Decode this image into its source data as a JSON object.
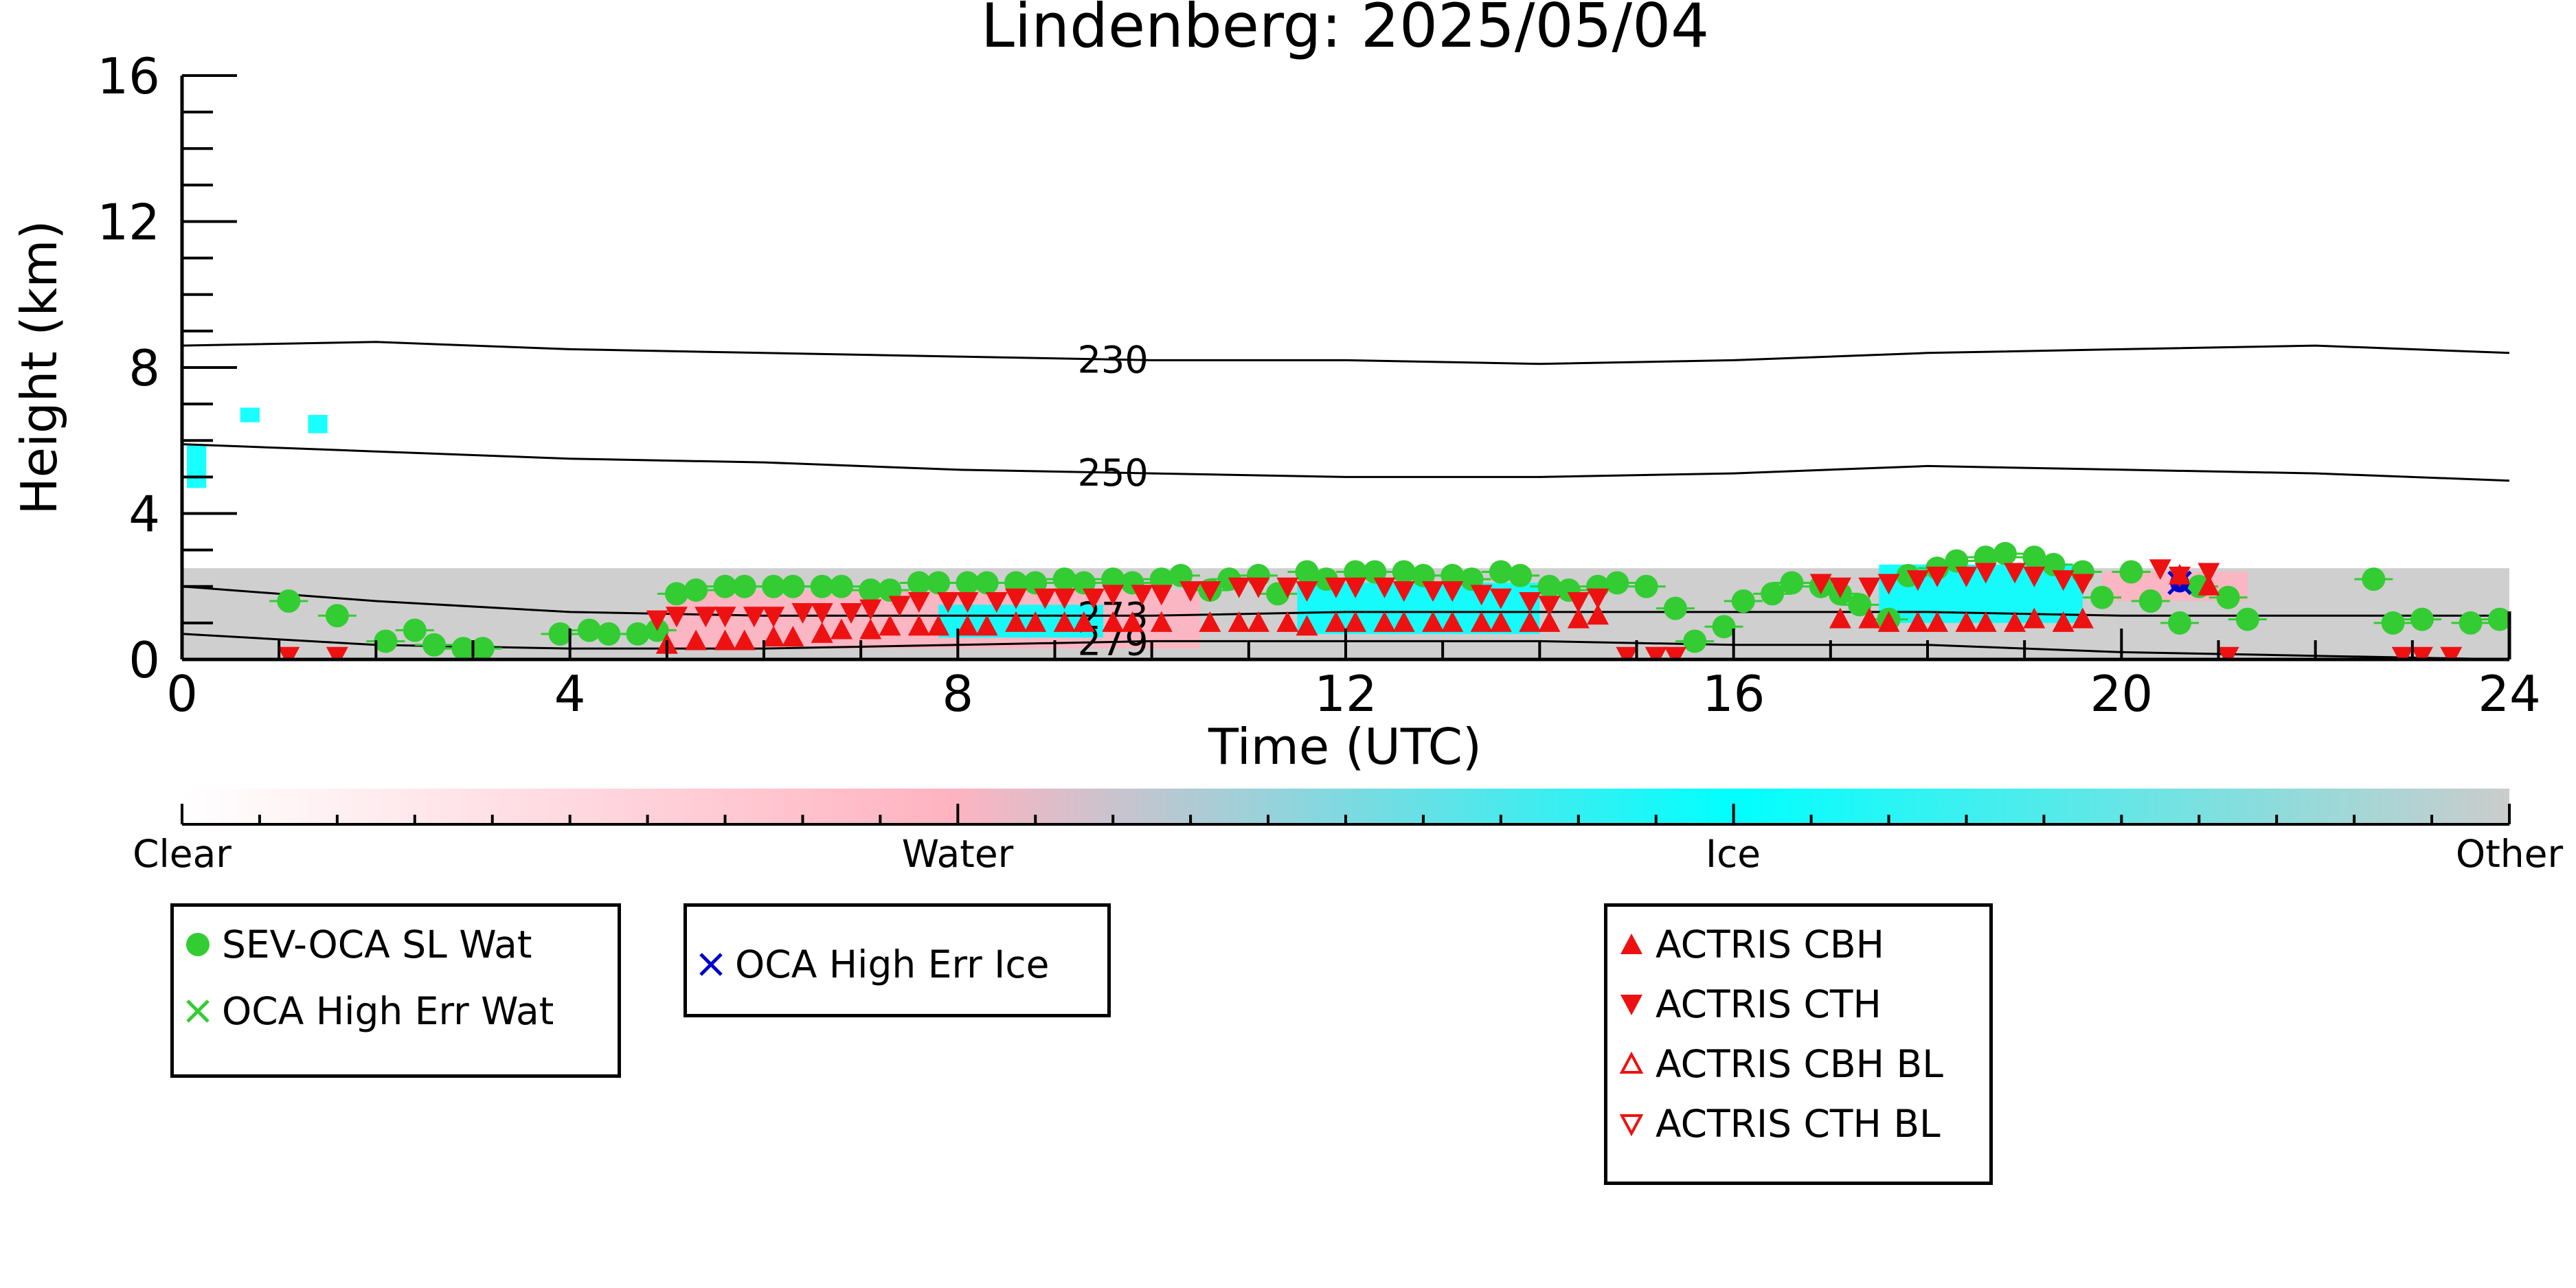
{
  "chart_data": {
    "type": "scatter",
    "title": "Lindenberg: 2025/05/04",
    "xlabel": "Time (UTC)",
    "ylabel": "Height (km)",
    "xlim": [
      0,
      24
    ],
    "ylim": [
      0,
      16
    ],
    "x_ticks": [
      "0",
      "4",
      "8",
      "12",
      "16",
      "20",
      "24"
    ],
    "y_ticks": [
      "0",
      "4",
      "8",
      "12",
      "16"
    ],
    "grid": false,
    "background_clouds": [
      {
        "class": "Other",
        "x0": 0.0,
        "x1": 24.0,
        "y0": 0.0,
        "y1": 2.5
      },
      {
        "class": "Water",
        "x0": 5.0,
        "x1": 10.5,
        "y0": 0.3,
        "y1": 1.9
      },
      {
        "class": "Ice",
        "x0": 7.8,
        "x1": 9.5,
        "y0": 0.6,
        "y1": 1.5
      },
      {
        "class": "Ice",
        "x0": 11.5,
        "x1": 14.0,
        "y0": 0.7,
        "y1": 2.1
      },
      {
        "class": "Ice",
        "x0": 17.5,
        "x1": 19.6,
        "y0": 1.0,
        "y1": 2.6
      },
      {
        "class": "Water",
        "x0": 19.8,
        "x1": 21.3,
        "y0": 1.6,
        "y1": 2.4
      },
      {
        "class": "Ice",
        "x0": 0.05,
        "x1": 0.25,
        "y0": 4.7,
        "y1": 5.9
      },
      {
        "class": "Ice",
        "x0": 0.6,
        "x1": 0.8,
        "y0": 6.5,
        "y1": 6.9
      },
      {
        "class": "Ice",
        "x0": 1.3,
        "x1": 1.5,
        "y0": 6.2,
        "y1": 6.7
      }
    ],
    "contours": [
      {
        "label": "230",
        "label_x": 9.6,
        "x": [
          0,
          2,
          4,
          6,
          8,
          10,
          12,
          14,
          16,
          18,
          20,
          22,
          24
        ],
        "y": [
          8.6,
          8.7,
          8.5,
          8.4,
          8.3,
          8.2,
          8.2,
          8.1,
          8.2,
          8.4,
          8.5,
          8.6,
          8.4
        ]
      },
      {
        "label": "250",
        "label_x": 9.6,
        "x": [
          0,
          2,
          4,
          6,
          8,
          10,
          12,
          14,
          16,
          18,
          20,
          22,
          24
        ],
        "y": [
          5.9,
          5.7,
          5.5,
          5.4,
          5.2,
          5.1,
          5.0,
          5.0,
          5.1,
          5.3,
          5.2,
          5.1,
          4.9
        ]
      },
      {
        "label": "273",
        "label_x": 9.6,
        "x": [
          0,
          2,
          4,
          6,
          8,
          10,
          12,
          14,
          16,
          18,
          20,
          22,
          24
        ],
        "y": [
          2.0,
          1.6,
          1.3,
          1.2,
          1.2,
          1.2,
          1.3,
          1.3,
          1.3,
          1.3,
          1.2,
          1.2,
          1.2
        ]
      },
      {
        "label": "279",
        "label_x": 9.6,
        "x": [
          0,
          2,
          4,
          6,
          8,
          10,
          12,
          14,
          16,
          18,
          20,
          22,
          24
        ],
        "y": [
          0.7,
          0.4,
          0.3,
          0.3,
          0.4,
          0.5,
          0.5,
          0.5,
          0.4,
          0.4,
          0.2,
          0.1,
          0.0
        ]
      }
    ],
    "series": [
      {
        "name": "SEV-OCA SL Wat",
        "marker": "circle",
        "color": "#33cc33",
        "x": [
          1.1,
          1.6,
          2.1,
          2.4,
          2.6,
          2.9,
          3.1,
          3.9,
          4.2,
          4.4,
          4.7,
          4.9,
          5.1,
          5.3,
          5.6,
          5.8,
          6.1,
          6.3,
          6.6,
          6.8,
          7.1,
          7.3,
          7.6,
          7.8,
          8.1,
          8.3,
          8.6,
          8.8,
          9.1,
          9.3,
          9.6,
          9.8,
          10.1,
          10.3,
          10.6,
          10.8,
          11.1,
          11.3,
          11.6,
          11.8,
          12.1,
          12.3,
          12.6,
          12.8,
          13.1,
          13.3,
          13.6,
          13.8,
          14.1,
          14.3,
          14.6,
          14.8,
          15.1,
          15.4,
          15.6,
          15.9,
          16.1,
          16.4,
          16.6,
          16.9,
          17.1,
          17.3,
          17.6,
          17.8,
          18.1,
          18.3,
          18.6,
          18.8,
          19.1,
          19.3,
          19.6,
          19.8,
          20.1,
          20.3,
          20.6,
          20.8,
          21.1,
          21.3,
          22.6,
          22.8,
          23.1,
          23.6,
          23.9
        ],
        "y": [
          1.6,
          1.2,
          0.5,
          0.8,
          0.4,
          0.3,
          0.3,
          0.7,
          0.8,
          0.7,
          0.7,
          0.8,
          1.8,
          1.9,
          2.0,
          2.0,
          2.0,
          2.0,
          2.0,
          2.0,
          1.9,
          1.9,
          2.1,
          2.1,
          2.1,
          2.1,
          2.1,
          2.1,
          2.2,
          2.1,
          2.2,
          2.1,
          2.2,
          2.3,
          1.9,
          2.2,
          2.3,
          1.8,
          2.4,
          2.2,
          2.4,
          2.4,
          2.4,
          2.3,
          2.3,
          2.2,
          2.4,
          2.3,
          2.0,
          1.9,
          2.0,
          2.1,
          2.0,
          1.4,
          0.5,
          0.9,
          1.6,
          1.8,
          2.1,
          2.0,
          1.8,
          1.5,
          1.1,
          2.3,
          2.5,
          2.7,
          2.8,
          2.9,
          2.8,
          2.6,
          2.4,
          1.7,
          2.4,
          1.6,
          1.0,
          2.0,
          1.7,
          1.1,
          2.2,
          1.0,
          1.1,
          1.0,
          1.1
        ]
      },
      {
        "name": "OCA High Err Wat",
        "marker": "x",
        "color": "#33cc33",
        "x": [],
        "y": []
      },
      {
        "name": "OCA High Err Ice",
        "marker": "x",
        "color": "#0000cc",
        "x": [
          20.6
        ],
        "y": [
          2.1
        ]
      },
      {
        "name": "ACTRIS CBH",
        "marker": "triangle-up",
        "color": "#ee1111",
        "x": [
          5.0,
          5.3,
          5.6,
          5.8,
          6.1,
          6.3,
          6.6,
          6.8,
          7.1,
          7.3,
          7.6,
          7.8,
          8.1,
          8.3,
          8.6,
          8.8,
          9.1,
          9.3,
          9.6,
          9.8,
          10.1,
          10.6,
          10.9,
          11.1,
          11.4,
          11.6,
          11.9,
          12.1,
          12.4,
          12.6,
          12.9,
          13.1,
          13.4,
          13.6,
          13.9,
          14.1,
          14.4,
          14.6,
          17.1,
          17.4,
          17.6,
          17.9,
          18.1,
          18.4,
          18.6,
          18.9,
          19.1,
          19.4,
          19.6,
          20.6,
          20.9
        ],
        "y": [
          0.4,
          0.5,
          0.5,
          0.5,
          0.6,
          0.6,
          0.7,
          0.8,
          0.8,
          0.9,
          0.9,
          0.9,
          0.9,
          0.9,
          1.0,
          1.0,
          1.0,
          1.0,
          1.0,
          1.0,
          1.0,
          1.0,
          1.0,
          1.0,
          1.0,
          0.9,
          1.0,
          1.0,
          1.0,
          1.0,
          1.0,
          1.0,
          1.0,
          1.0,
          1.0,
          1.0,
          1.1,
          1.2,
          1.1,
          1.1,
          1.0,
          1.0,
          1.0,
          1.0,
          1.0,
          1.0,
          1.1,
          1.0,
          1.1,
          2.3,
          2.0
        ]
      },
      {
        "name": "ACTRIS CTH",
        "marker": "triangle-down",
        "color": "#ee1111",
        "x": [
          1.1,
          1.6,
          4.9,
          5.1,
          5.4,
          5.6,
          5.9,
          6.1,
          6.4,
          6.6,
          6.9,
          7.1,
          7.4,
          7.6,
          7.9,
          8.1,
          8.4,
          8.6,
          8.9,
          9.1,
          9.4,
          9.6,
          9.9,
          10.1,
          10.4,
          10.6,
          10.9,
          11.1,
          11.4,
          11.6,
          11.9,
          12.1,
          12.4,
          12.6,
          12.9,
          13.1,
          13.4,
          13.6,
          13.9,
          14.1,
          14.4,
          14.6,
          14.9,
          15.2,
          15.4,
          16.9,
          17.1,
          17.4,
          17.6,
          17.9,
          18.1,
          18.4,
          18.6,
          18.9,
          19.1,
          19.4,
          19.6,
          20.4,
          20.6,
          20.9,
          21.1,
          22.9,
          23.1,
          23.4
        ],
        "y": [
          0.1,
          0.1,
          1.1,
          1.2,
          1.2,
          1.2,
          1.2,
          1.2,
          1.3,
          1.3,
          1.3,
          1.4,
          1.5,
          1.6,
          1.6,
          1.6,
          1.6,
          1.7,
          1.7,
          1.7,
          1.7,
          1.8,
          1.8,
          1.8,
          1.9,
          1.9,
          2.0,
          2.0,
          2.0,
          1.9,
          2.0,
          2.0,
          2.0,
          1.9,
          1.9,
          1.9,
          1.8,
          1.7,
          1.6,
          1.5,
          1.6,
          1.7,
          0.1,
          0.1,
          0.1,
          2.1,
          2.0,
          2.0,
          2.1,
          2.2,
          2.3,
          2.3,
          2.4,
          2.4,
          2.3,
          2.2,
          2.1,
          2.5,
          2.3,
          2.4,
          0.1,
          0.1,
          0.1,
          0.1
        ]
      },
      {
        "name": "ACTRIS CBH BL",
        "marker": "triangle-up-open",
        "color": "#ee1111",
        "x": [],
        "y": []
      },
      {
        "name": "ACTRIS CTH BL",
        "marker": "triangle-down-open",
        "color": "#ee1111",
        "x": [],
        "y": []
      }
    ],
    "colorbar": {
      "labels": [
        "Clear",
        "Water",
        "Ice",
        "Other"
      ],
      "colors": [
        "#ffffff",
        "#ffb3c1",
        "#00ffff",
        "#cccccc"
      ]
    }
  },
  "legends": [
    {
      "items": [
        "SEV-OCA SL Wat",
        "OCA High Err Wat"
      ]
    },
    {
      "items": [
        "OCA High Err Ice"
      ]
    },
    {
      "items": [
        "ACTRIS CBH",
        "ACTRIS CTH",
        "ACTRIS CBH BL",
        "ACTRIS CTH BL"
      ]
    }
  ],
  "colors": {
    "water": "#ffb3c1",
    "ice": "#00ffff",
    "other": "#cccccc",
    "green": "#33cc33",
    "red": "#ee1111",
    "blue": "#0000cc"
  }
}
